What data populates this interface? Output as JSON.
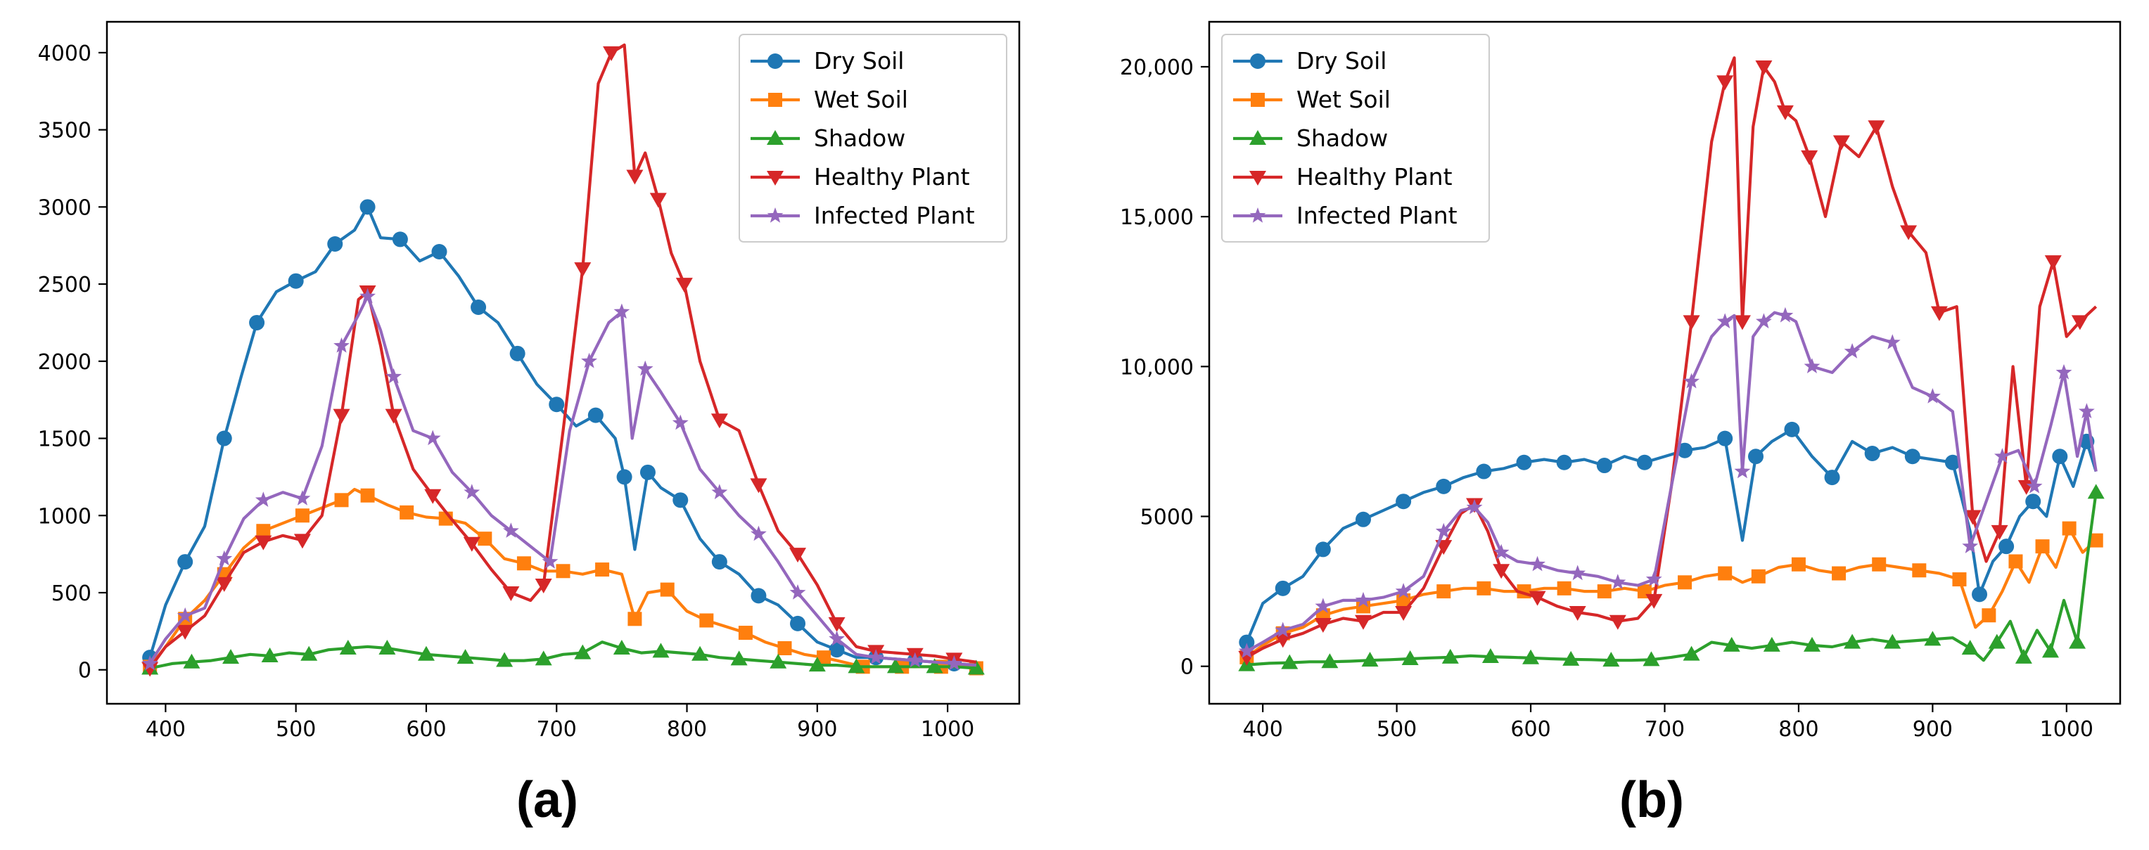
{
  "figure": {
    "labels": [
      "(a)",
      "(b)"
    ]
  },
  "chart_data": [
    {
      "type": "line",
      "panel": "(a)",
      "title": "",
      "xlabel": "",
      "ylabel": "",
      "xlim": [
        355,
        1055
      ],
      "ylim": [
        -220,
        4200
      ],
      "xticks": [
        400,
        500,
        600,
        700,
        800,
        900,
        1000
      ],
      "xtick_labels": [
        "400",
        "500",
        "600",
        "700",
        "800",
        "900",
        "1000"
      ],
      "yticks": [
        0,
        500,
        1000,
        1500,
        2000,
        2500,
        3000,
        3500,
        4000
      ],
      "ytick_labels": [
        "0",
        "500",
        "1000",
        "1500",
        "2000",
        "2500",
        "3000",
        "3500",
        "4000"
      ],
      "grid": false,
      "legend_position": "top-right",
      "series": [
        {
          "name": "Dry Soil",
          "color": "#1f77b4",
          "marker": "circle",
          "x": [
            388,
            400,
            415,
            430,
            445,
            458,
            470,
            485,
            500,
            515,
            530,
            545,
            555,
            565,
            580,
            595,
            610,
            625,
            640,
            655,
            670,
            685,
            700,
            715,
            730,
            745,
            752,
            760,
            770,
            780,
            795,
            810,
            825,
            840,
            855,
            870,
            885,
            900,
            915,
            930,
            945,
            960,
            975,
            990,
            1005,
            1022
          ],
          "y": [
            80,
            420,
            700,
            930,
            1500,
            1900,
            2250,
            2450,
            2520,
            2580,
            2760,
            2850,
            3000,
            2800,
            2790,
            2650,
            2710,
            2550,
            2350,
            2250,
            2050,
            1850,
            1720,
            1580,
            1650,
            1500,
            1250,
            780,
            1280,
            1180,
            1100,
            850,
            700,
            620,
            480,
            420,
            300,
            180,
            130,
            80,
            80,
            70,
            60,
            50,
            40,
            30
          ]
        },
        {
          "name": "Wet Soil",
          "color": "#ff7f0e",
          "marker": "square",
          "x": [
            388,
            400,
            415,
            430,
            445,
            460,
            475,
            490,
            505,
            520,
            535,
            545,
            555,
            570,
            585,
            600,
            615,
            630,
            645,
            660,
            675,
            690,
            705,
            720,
            735,
            750,
            760,
            770,
            785,
            800,
            815,
            830,
            845,
            860,
            875,
            890,
            905,
            920,
            935,
            950,
            965,
            980,
            995,
            1010,
            1022
          ],
          "y": [
            20,
            150,
            330,
            450,
            620,
            790,
            900,
            950,
            1000,
            1050,
            1100,
            1170,
            1130,
            1070,
            1020,
            990,
            980,
            950,
            850,
            720,
            690,
            640,
            640,
            620,
            650,
            620,
            330,
            500,
            520,
            380,
            320,
            280,
            240,
            180,
            140,
            100,
            80,
            50,
            20,
            20,
            20,
            20,
            20,
            20,
            10
          ]
        },
        {
          "name": "Shadow",
          "color": "#2ca02c",
          "marker": "triangle-up",
          "x": [
            388,
            405,
            420,
            435,
            450,
            465,
            480,
            495,
            510,
            525,
            540,
            555,
            570,
            585,
            600,
            615,
            630,
            645,
            660,
            675,
            690,
            705,
            720,
            735,
            750,
            765,
            780,
            795,
            810,
            825,
            840,
            855,
            870,
            885,
            900,
            915,
            930,
            945,
            960,
            975,
            990,
            1005,
            1022
          ],
          "y": [
            10,
            40,
            50,
            60,
            80,
            100,
            90,
            110,
            100,
            130,
            140,
            150,
            140,
            120,
            100,
            90,
            80,
            70,
            60,
            60,
            70,
            100,
            110,
            180,
            140,
            110,
            120,
            110,
            100,
            80,
            70,
            60,
            50,
            40,
            30,
            30,
            20,
            20,
            20,
            20,
            20,
            20,
            10
          ]
        },
        {
          "name": "Healthy Plant",
          "color": "#d62728",
          "marker": "triangle-down",
          "x": [
            388,
            400,
            415,
            430,
            445,
            460,
            475,
            490,
            505,
            520,
            535,
            548,
            555,
            565,
            575,
            590,
            605,
            620,
            635,
            650,
            665,
            680,
            690,
            705,
            720,
            732,
            742,
            752,
            760,
            768,
            778,
            788,
            798,
            810,
            825,
            840,
            855,
            870,
            885,
            900,
            915,
            930,
            945,
            960,
            975,
            990,
            1005,
            1022
          ],
          "y": [
            10,
            150,
            250,
            350,
            560,
            760,
            830,
            870,
            840,
            1000,
            1650,
            2400,
            2450,
            2100,
            1650,
            1300,
            1130,
            970,
            820,
            650,
            500,
            450,
            550,
            1550,
            2600,
            3800,
            4000,
            4050,
            3200,
            3350,
            3050,
            2700,
            2500,
            2000,
            1620,
            1550,
            1200,
            900,
            750,
            550,
            300,
            150,
            120,
            110,
            100,
            90,
            70,
            50
          ]
        },
        {
          "name": "Infected Plant",
          "color": "#9467bd",
          "marker": "star",
          "x": [
            388,
            400,
            415,
            430,
            445,
            460,
            475,
            490,
            505,
            520,
            535,
            548,
            555,
            565,
            575,
            590,
            605,
            620,
            635,
            650,
            665,
            680,
            695,
            710,
            725,
            740,
            750,
            758,
            768,
            780,
            795,
            810,
            825,
            840,
            855,
            870,
            885,
            900,
            915,
            930,
            945,
            960,
            975,
            990,
            1005,
            1022
          ],
          "y": [
            40,
            200,
            350,
            400,
            720,
            980,
            1100,
            1150,
            1110,
            1450,
            2100,
            2300,
            2420,
            2200,
            1900,
            1550,
            1500,
            1280,
            1150,
            1000,
            900,
            800,
            700,
            1550,
            2000,
            2250,
            2320,
            1500,
            1950,
            1800,
            1600,
            1300,
            1150,
            1000,
            880,
            700,
            500,
            350,
            200,
            100,
            80,
            70,
            60,
            50,
            40,
            30
          ]
        }
      ]
    },
    {
      "type": "line",
      "panel": "(b)",
      "title": "",
      "xlabel": "",
      "ylabel": "",
      "xlim": [
        360,
        1040
      ],
      "ylim": [
        -1250,
        21500
      ],
      "xticks": [
        400,
        500,
        600,
        700,
        800,
        900,
        1000
      ],
      "xtick_labels": [
        "400",
        "500",
        "600",
        "700",
        "800",
        "900",
        "1000"
      ],
      "yticks": [
        0,
        5000,
        10000,
        15000,
        20000
      ],
      "ytick_labels": [
        "0",
        "5000",
        "10,000",
        "15,000",
        "20,000"
      ],
      "grid": false,
      "legend_position": "top-left",
      "series": [
        {
          "name": "Dry Soil",
          "color": "#1f77b4",
          "marker": "circle",
          "x": [
            388,
            400,
            415,
            430,
            445,
            460,
            475,
            490,
            505,
            520,
            535,
            550,
            565,
            580,
            595,
            610,
            625,
            640,
            655,
            670,
            685,
            700,
            715,
            730,
            745,
            758,
            768,
            780,
            795,
            810,
            825,
            840,
            855,
            870,
            885,
            900,
            915,
            928,
            935,
            945,
            955,
            965,
            975,
            985,
            995,
            1005,
            1015,
            1022
          ],
          "y": [
            800,
            2100,
            2600,
            3000,
            3900,
            4600,
            4900,
            5200,
            5500,
            5800,
            6000,
            6300,
            6500,
            6600,
            6800,
            6900,
            6800,
            6900,
            6700,
            7000,
            6800,
            7000,
            7200,
            7300,
            7600,
            4200,
            7000,
            7500,
            7900,
            7000,
            6300,
            7500,
            7100,
            7300,
            7000,
            6900,
            6800,
            4500,
            2400,
            3500,
            4000,
            5000,
            5500,
            5000,
            7000,
            6000,
            7500,
            6500
          ]
        },
        {
          "name": "Wet Soil",
          "color": "#ff7f0e",
          "marker": "square",
          "x": [
            388,
            400,
            415,
            430,
            445,
            460,
            475,
            490,
            505,
            520,
            535,
            550,
            565,
            580,
            595,
            610,
            625,
            640,
            655,
            670,
            685,
            700,
            715,
            730,
            745,
            758,
            770,
            785,
            800,
            815,
            830,
            845,
            860,
            875,
            890,
            905,
            920,
            932,
            942,
            952,
            962,
            972,
            982,
            992,
            1002,
            1012,
            1022
          ],
          "y": [
            300,
            700,
            1100,
            1300,
            1700,
            1900,
            2000,
            2100,
            2200,
            2400,
            2500,
            2600,
            2600,
            2500,
            2500,
            2600,
            2600,
            2500,
            2500,
            2600,
            2500,
            2700,
            2800,
            3000,
            3100,
            2800,
            3000,
            3300,
            3400,
            3200,
            3100,
            3300,
            3400,
            3300,
            3200,
            3100,
            2900,
            1300,
            1700,
            2500,
            3500,
            2800,
            4000,
            3300,
            4600,
            3800,
            4200
          ]
        },
        {
          "name": "Shadow",
          "color": "#2ca02c",
          "marker": "triangle-up",
          "x": [
            388,
            405,
            420,
            435,
            450,
            465,
            480,
            495,
            510,
            525,
            540,
            555,
            570,
            585,
            600,
            615,
            630,
            645,
            660,
            675,
            690,
            705,
            720,
            735,
            750,
            765,
            780,
            795,
            810,
            825,
            840,
            855,
            870,
            885,
            900,
            915,
            928,
            938,
            948,
            958,
            968,
            978,
            988,
            998,
            1008,
            1015,
            1022
          ],
          "y": [
            50,
            100,
            120,
            150,
            150,
            170,
            200,
            220,
            250,
            280,
            300,
            350,
            320,
            300,
            280,
            250,
            230,
            220,
            200,
            200,
            220,
            300,
            400,
            800,
            700,
            600,
            700,
            800,
            700,
            650,
            800,
            900,
            800,
            850,
            900,
            950,
            600,
            200,
            800,
            1500,
            300,
            1200,
            500,
            2200,
            800,
            3500,
            5800
          ]
        },
        {
          "name": "Healthy Plant",
          "color": "#d62728",
          "marker": "triangle-down",
          "x": [
            388,
            400,
            415,
            430,
            445,
            460,
            475,
            490,
            505,
            520,
            535,
            548,
            558,
            568,
            578,
            590,
            605,
            620,
            635,
            650,
            665,
            680,
            692,
            705,
            720,
            735,
            745,
            752,
            758,
            766,
            774,
            782,
            790,
            798,
            808,
            820,
            832,
            845,
            858,
            870,
            882,
            895,
            905,
            918,
            930,
            940,
            950,
            960,
            970,
            980,
            990,
            1000,
            1010,
            1022
          ],
          "y": [
            300,
            600,
            900,
            1100,
            1400,
            1600,
            1500,
            1800,
            1800,
            2600,
            4000,
            5100,
            5400,
            4500,
            3200,
            2500,
            2300,
            2000,
            1800,
            1700,
            1500,
            1600,
            2200,
            6000,
            11500,
            17500,
            19500,
            20300,
            11500,
            18000,
            20000,
            19500,
            18500,
            18200,
            17000,
            15000,
            17500,
            17000,
            18000,
            16000,
            14500,
            13800,
            11800,
            12000,
            5000,
            3500,
            4500,
            10000,
            6000,
            12000,
            13500,
            11000,
            11500,
            12000
          ]
        },
        {
          "name": "Infected Plant",
          "color": "#9467bd",
          "marker": "star",
          "x": [
            388,
            400,
            415,
            430,
            445,
            460,
            475,
            490,
            505,
            520,
            535,
            548,
            558,
            568,
            578,
            590,
            605,
            620,
            635,
            650,
            665,
            680,
            692,
            705,
            720,
            735,
            745,
            752,
            758,
            766,
            774,
            782,
            790,
            798,
            810,
            825,
            840,
            855,
            870,
            885,
            900,
            915,
            928,
            940,
            952,
            964,
            976,
            988,
            998,
            1008,
            1015,
            1022
          ],
          "y": [
            500,
            800,
            1200,
            1400,
            2000,
            2200,
            2200,
            2300,
            2500,
            3000,
            4500,
            5200,
            5300,
            4800,
            3800,
            3500,
            3400,
            3200,
            3100,
            3000,
            2800,
            2700,
            2900,
            6000,
            9500,
            11000,
            11500,
            11700,
            6500,
            11000,
            11500,
            11800,
            11700,
            11500,
            10000,
            9800,
            10500,
            11000,
            10800,
            9300,
            9000,
            8500,
            4000,
            5500,
            7000,
            7200,
            6000,
            8000,
            9800,
            7000,
            8500,
            6500
          ]
        }
      ]
    }
  ]
}
